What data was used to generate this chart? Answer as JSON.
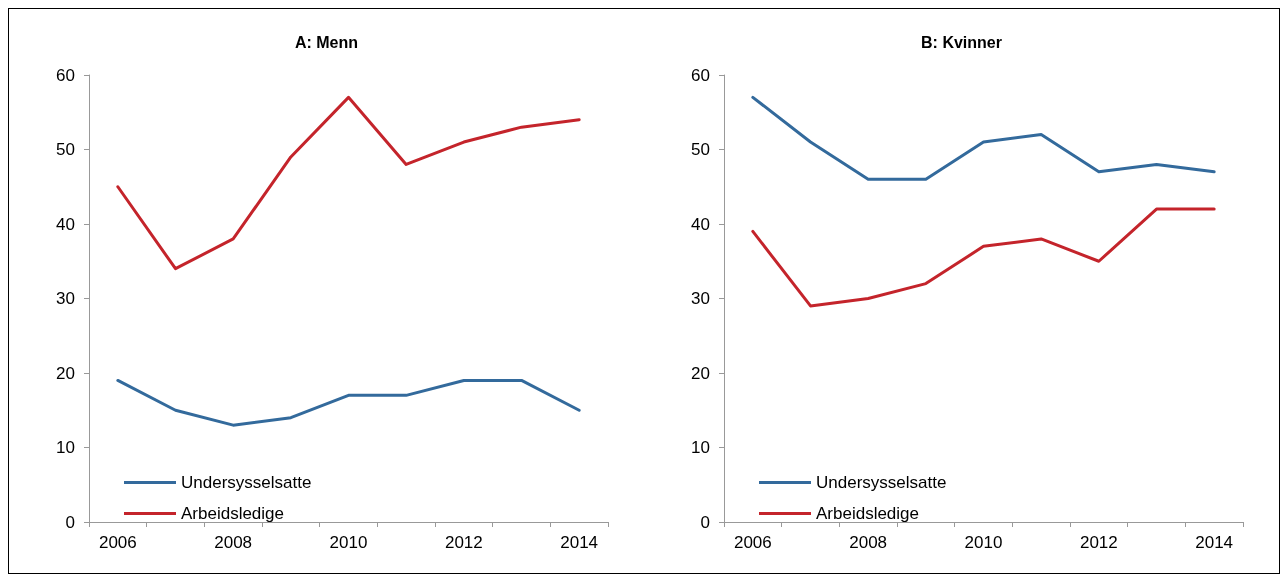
{
  "chart_data": [
    {
      "type": "line",
      "title": "A: Menn",
      "categories": [
        "2006",
        null,
        "2008",
        null,
        "2010",
        null,
        "2012",
        null,
        "2014"
      ],
      "ylim": [
        0,
        60
      ],
      "yticks": [
        0,
        10,
        20,
        30,
        40,
        50,
        60
      ],
      "grid": false,
      "legend": "bottom left",
      "marker": "none",
      "line_style": "solid",
      "series": [
        {
          "name": "Undersysselsatte",
          "color": "#336a9c",
          "values": [
            19,
            15,
            13,
            14,
            17,
            17,
            19,
            19,
            15
          ]
        },
        {
          "name": "Arbeidsledige",
          "color": "#c4242b",
          "values": [
            45,
            34,
            38,
            49,
            57,
            48,
            51,
            53,
            54
          ]
        }
      ]
    },
    {
      "type": "line",
      "title": "B: Kvinner",
      "categories": [
        "2006",
        null,
        "2008",
        null,
        "2010",
        null,
        "2012",
        null,
        "2014"
      ],
      "ylim": [
        0,
        60
      ],
      "yticks": [
        0,
        10,
        20,
        30,
        40,
        50,
        60
      ],
      "grid": false,
      "legend": "bottom left",
      "marker": "none",
      "line_style": "solid",
      "series": [
        {
          "name": "Undersysselsatte",
          "color": "#336a9c",
          "values": [
            57,
            51,
            46,
            46,
            51,
            52,
            47,
            48,
            47
          ]
        },
        {
          "name": "Arbeidsledige",
          "color": "#c4242b",
          "values": [
            39,
            29,
            30,
            32,
            37,
            38,
            35,
            42,
            42
          ]
        }
      ]
    }
  ]
}
